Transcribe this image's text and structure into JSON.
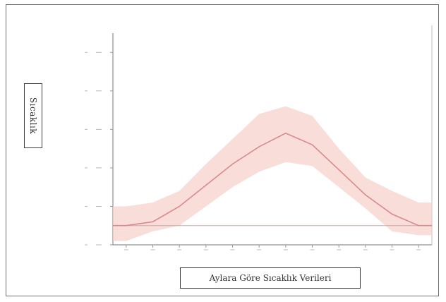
{
  "chart_data": {
    "type": "area",
    "title": "Aylara Göre Sıcaklık Verileri",
    "xlabel": "",
    "ylabel": "Sıcaklık",
    "x": [
      1,
      2,
      3,
      4,
      5,
      6,
      7,
      8,
      9,
      10,
      11,
      12
    ],
    "xlim": [
      0.5,
      12.5
    ],
    "ylim": [
      -10,
      100
    ],
    "yticks": [
      -10,
      10,
      30,
      50,
      70,
      90
    ],
    "grid": false,
    "legend": "none",
    "series": [
      {
        "mean": [
          0,
          2,
          10,
          21,
          32,
          41,
          48,
          42,
          29,
          16,
          6,
          0
        ],
        "lower": [
          -8,
          -3,
          0,
          10,
          20,
          28,
          33,
          31,
          20,
          9,
          -3,
          -5
        ],
        "upper": [
          10,
          12,
          18,
          32,
          45,
          58,
          62,
          57,
          40,
          25,
          18,
          12
        ],
        "line_color": "#d98a8a",
        "band_color": "#f7d2cc"
      }
    ],
    "baseline": 0,
    "baseline_color": "#c8a8a8"
  }
}
